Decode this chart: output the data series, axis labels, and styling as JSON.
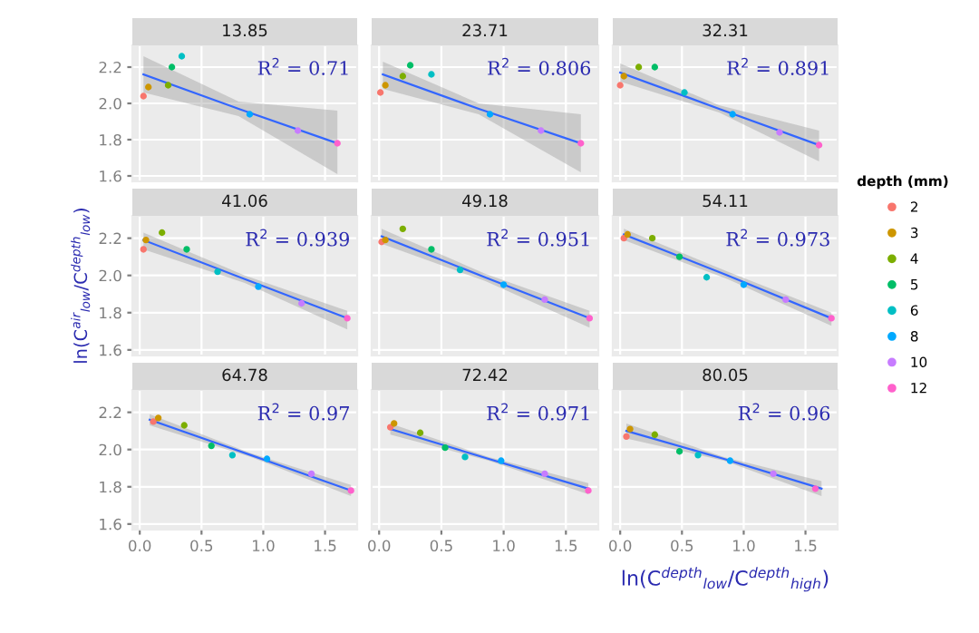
{
  "chart_data": [
    {
      "type": "scatter",
      "title": "13.85",
      "annotations": [
        "R$^{2}$ = 0.71"
      ],
      "xlim": [
        -0.06,
        1.76
      ],
      "ylim": [
        1.57,
        2.32
      ],
      "xticks": [
        {
          "value": 0,
          "label": null
        },
        {
          "value": 0.5,
          "label": null
        },
        {
          "value": 1,
          "label": null
        },
        {
          "value": 1.5,
          "label": null
        }
      ],
      "yticks": [
        {
          "value": 1.6,
          "label": "1.6"
        },
        {
          "value": 1.8,
          "label": "1.8"
        },
        {
          "value": 2.0,
          "label": "2.0"
        },
        {
          "value": 2.2,
          "label": "2.2"
        }
      ],
      "tick_labels": "y",
      "grid": true,
      "marker": "circle",
      "series": [
        {
          "x": [
            0.03,
            0.07,
            0.23,
            0.26,
            0.34,
            0.89,
            1.28,
            1.6
          ],
          "values": [
            2.04,
            2.09,
            2.1,
            2.2,
            2.26,
            1.94,
            1.85,
            1.78
          ],
          "colors": [
            "#F8766D",
            "#CD9600",
            "#7CAE00",
            "#00BE67",
            "#00BFC4",
            "#00A9FF",
            "#C77CFF",
            "#FF61CC"
          ]
        },
        {
          "type": "line",
          "marker": "none",
          "color": "#3366FF",
          "x": [
            0.03,
            0.8,
            1.6
          ],
          "values": [
            2.16,
            1.97,
            1.78
          ],
          "lower": [
            2.06,
            1.93,
            1.61
          ],
          "upper": [
            2.26,
            2.01,
            1.96
          ]
        }
      ]
    },
    {
      "type": "scatter",
      "title": "23.71",
      "annotations": [
        "R$^{2}$ = 0.806"
      ],
      "xlim": [
        -0.06,
        1.76
      ],
      "ylim": [
        1.57,
        2.32
      ],
      "xticks": [
        {
          "value": 0,
          "label": null
        },
        {
          "value": 0.5,
          "label": null
        },
        {
          "value": 1,
          "label": null
        },
        {
          "value": 1.5,
          "label": null
        }
      ],
      "yticks": [
        {
          "value": 1.6,
          "label": null
        },
        {
          "value": 1.8,
          "label": null
        },
        {
          "value": 2.0,
          "label": null
        },
        {
          "value": 2.2,
          "label": null
        }
      ],
      "tick_labels": false,
      "grid": true,
      "marker": "circle",
      "series": [
        {
          "x": [
            0.01,
            0.05,
            0.19,
            0.25,
            0.42,
            0.89,
            1.3,
            1.62
          ],
          "values": [
            2.06,
            2.1,
            2.15,
            2.21,
            2.16,
            1.94,
            1.85,
            1.78
          ],
          "colors": [
            "#F8766D",
            "#CD9600",
            "#7CAE00",
            "#00BE67",
            "#00BFC4",
            "#00A9FF",
            "#C77CFF",
            "#FF61CC"
          ]
        },
        {
          "type": "line",
          "marker": "none",
          "color": "#3366FF",
          "x": [
            0.03,
            0.8,
            1.62
          ],
          "values": [
            2.16,
            1.97,
            1.78
          ],
          "lower": [
            2.08,
            1.94,
            1.62
          ],
          "upper": [
            2.23,
            2.0,
            1.94
          ]
        }
      ]
    },
    {
      "type": "scatter",
      "title": "32.31",
      "annotations": [
        "R$^{2}$ = 0.891"
      ],
      "xlim": [
        -0.06,
        1.76
      ],
      "ylim": [
        1.57,
        2.32
      ],
      "xticks": [
        {
          "value": 0,
          "label": null
        },
        {
          "value": 0.5,
          "label": null
        },
        {
          "value": 1,
          "label": null
        },
        {
          "value": 1.5,
          "label": null
        }
      ],
      "yticks": [
        {
          "value": 1.6,
          "label": null
        },
        {
          "value": 1.8,
          "label": null
        },
        {
          "value": 2.0,
          "label": null
        },
        {
          "value": 2.2,
          "label": null
        }
      ],
      "tick_labels": false,
      "grid": true,
      "marker": "circle",
      "series": [
        {
          "x": [
            0.0,
            0.03,
            0.15,
            0.28,
            0.52,
            0.91,
            1.29,
            1.61
          ],
          "values": [
            2.1,
            2.15,
            2.2,
            2.2,
            2.06,
            1.94,
            1.84,
            1.77
          ],
          "colors": [
            "#F8766D",
            "#CD9600",
            "#7CAE00",
            "#00BE67",
            "#00BFC4",
            "#00A9FF",
            "#C77CFF",
            "#FF61CC"
          ]
        },
        {
          "type": "line",
          "marker": "none",
          "color": "#3366FF",
          "x": [
            0.0,
            0.8,
            1.61
          ],
          "values": [
            2.17,
            1.97,
            1.77
          ],
          "lower": [
            2.12,
            1.95,
            1.68
          ],
          "upper": [
            2.22,
            1.99,
            1.85
          ]
        }
      ]
    },
    {
      "type": "scatter",
      "title": "41.06",
      "ylabel": "ln(C$^{air}$$_{low}$/C$^{depth}$$_{low}$)",
      "annotations": [
        "R$^{2}$ = 0.939"
      ],
      "xlim": [
        -0.06,
        1.76
      ],
      "ylim": [
        1.57,
        2.32
      ],
      "xticks": [
        {
          "value": 0,
          "label": null
        },
        {
          "value": 0.5,
          "label": null
        },
        {
          "value": 1,
          "label": null
        },
        {
          "value": 1.5,
          "label": null
        }
      ],
      "yticks": [
        {
          "value": 1.6,
          "label": "1.6"
        },
        {
          "value": 1.8,
          "label": "1.8"
        },
        {
          "value": 2.0,
          "label": "2.0"
        },
        {
          "value": 2.2,
          "label": "2.2"
        }
      ],
      "tick_labels": "y",
      "grid": true,
      "marker": "circle",
      "series": [
        {
          "x": [
            0.03,
            0.05,
            0.18,
            0.38,
            0.63,
            0.96,
            1.31,
            1.68
          ],
          "values": [
            2.14,
            2.19,
            2.23,
            2.14,
            2.02,
            1.94,
            1.85,
            1.77
          ],
          "colors": [
            "#F8766D",
            "#CD9600",
            "#7CAE00",
            "#00BE67",
            "#00BFC4",
            "#00A9FF",
            "#C77CFF",
            "#FF61CC"
          ]
        },
        {
          "type": "line",
          "marker": "none",
          "color": "#3366FF",
          "x": [
            0.03,
            0.85,
            1.68
          ],
          "values": [
            2.19,
            1.98,
            1.77
          ],
          "lower": [
            2.14,
            1.96,
            1.71
          ],
          "upper": [
            2.23,
            2.0,
            1.81
          ]
        }
      ]
    },
    {
      "type": "scatter",
      "title": "49.18",
      "annotations": [
        "R$^{2}$ = 0.951"
      ],
      "xlim": [
        -0.06,
        1.76
      ],
      "ylim": [
        1.57,
        2.32
      ],
      "xticks": [
        {
          "value": 0,
          "label": null
        },
        {
          "value": 0.5,
          "label": null
        },
        {
          "value": 1,
          "label": null
        },
        {
          "value": 1.5,
          "label": null
        }
      ],
      "yticks": [
        {
          "value": 1.6,
          "label": null
        },
        {
          "value": 1.8,
          "label": null
        },
        {
          "value": 2.0,
          "label": null
        },
        {
          "value": 2.2,
          "label": null
        }
      ],
      "tick_labels": false,
      "grid": true,
      "marker": "circle",
      "series": [
        {
          "x": [
            0.02,
            0.05,
            0.19,
            0.42,
            0.65,
            1.0,
            1.33,
            1.69
          ],
          "values": [
            2.18,
            2.19,
            2.25,
            2.14,
            2.03,
            1.95,
            1.87,
            1.77
          ],
          "colors": [
            "#F8766D",
            "#CD9600",
            "#7CAE00",
            "#00BE67",
            "#00BFC4",
            "#00A9FF",
            "#C77CFF",
            "#FF61CC"
          ]
        },
        {
          "type": "line",
          "marker": "none",
          "color": "#3366FF",
          "x": [
            0.02,
            0.85,
            1.69
          ],
          "values": [
            2.21,
            1.99,
            1.77
          ],
          "lower": [
            2.17,
            1.97,
            1.72
          ],
          "upper": [
            2.25,
            2.01,
            1.81
          ]
        }
      ]
    },
    {
      "type": "scatter",
      "title": "54.11",
      "legend_title": "depth (mm)",
      "legend": "right",
      "annotations": [
        "R$^{2}$ = 0.973"
      ],
      "xlim": [
        -0.06,
        1.76
      ],
      "ylim": [
        1.57,
        2.32
      ],
      "xticks": [
        {
          "value": 0,
          "label": null
        },
        {
          "value": 0.5,
          "label": null
        },
        {
          "value": 1,
          "label": null
        },
        {
          "value": 1.5,
          "label": null
        }
      ],
      "yticks": [
        {
          "value": 1.6,
          "label": null
        },
        {
          "value": 1.8,
          "label": null
        },
        {
          "value": 2.0,
          "label": null
        },
        {
          "value": 2.2,
          "label": null
        }
      ],
      "tick_labels": false,
      "grid": true,
      "marker": "circle",
      "series": [
        {
          "name": "2",
          "color": "#F8766D",
          "x": [
            0.03
          ],
          "values": [
            2.2
          ]
        },
        {
          "name": "3",
          "color": "#CD9600",
          "x": [
            0.06
          ],
          "values": [
            2.22
          ]
        },
        {
          "name": "4",
          "color": "#7CAE00",
          "x": [
            0.26
          ],
          "values": [
            2.2
          ]
        },
        {
          "name": "5",
          "color": "#00BE67",
          "x": [
            0.48
          ],
          "values": [
            2.1
          ]
        },
        {
          "name": "6",
          "color": "#00BFC4",
          "x": [
            0.7
          ],
          "values": [
            1.99
          ]
        },
        {
          "name": "8",
          "color": "#00A9FF",
          "x": [
            1.0
          ],
          "values": [
            1.95
          ]
        },
        {
          "name": "10",
          "color": "#C77CFF",
          "x": [
            1.34
          ],
          "values": [
            1.87
          ]
        },
        {
          "name": "12",
          "color": "#FF61CC",
          "x": [
            1.71
          ],
          "values": [
            1.77
          ]
        },
        {
          "type": "line",
          "marker": "none",
          "color": "#3366FF",
          "x": [
            0.03,
            0.87,
            1.71
          ],
          "values": [
            2.22,
            2.0,
            1.77
          ],
          "lower": [
            2.19,
            1.98,
            1.73
          ],
          "upper": [
            2.25,
            2.02,
            1.8
          ]
        }
      ]
    },
    {
      "type": "scatter",
      "title": "64.78",
      "annotations": [
        "R$^{2}$ = 0.97"
      ],
      "xlim": [
        -0.06,
        1.76
      ],
      "ylim": [
        1.57,
        2.32
      ],
      "xticks": [
        {
          "value": 0,
          "label": "0.0"
        },
        {
          "value": 0.5,
          "label": "0.5"
        },
        {
          "value": 1,
          "label": "1.0"
        },
        {
          "value": 1.5,
          "label": "1.5"
        }
      ],
      "yticks": [
        {
          "value": 1.6,
          "label": "1.6"
        },
        {
          "value": 1.8,
          "label": "1.8"
        },
        {
          "value": 2.0,
          "label": "2.0"
        },
        {
          "value": 2.2,
          "label": "2.2"
        }
      ],
      "grid": true,
      "marker": "circle",
      "series": [
        {
          "x": [
            0.11,
            0.15,
            0.36,
            0.58,
            0.75,
            1.03,
            1.39,
            1.71
          ],
          "values": [
            2.15,
            2.17,
            2.13,
            2.02,
            1.97,
            1.95,
            1.87,
            1.78
          ],
          "colors": [
            "#F8766D",
            "#CD9600",
            "#7CAE00",
            "#00BE67",
            "#00BFC4",
            "#00A9FF",
            "#C77CFF",
            "#FF61CC"
          ]
        },
        {
          "type": "line",
          "marker": "none",
          "color": "#3366FF",
          "x": [
            0.08,
            0.9,
            1.71
          ],
          "values": [
            2.16,
            1.97,
            1.78
          ],
          "lower": [
            2.13,
            1.96,
            1.75
          ],
          "upper": [
            2.19,
            1.98,
            1.81
          ]
        }
      ]
    },
    {
      "type": "scatter",
      "title": "72.42",
      "annotations": [
        "R$^{2}$ = 0.971"
      ],
      "xlim": [
        -0.06,
        1.76
      ],
      "ylim": [
        1.57,
        2.32
      ],
      "xticks": [
        {
          "value": 0,
          "label": "0.0"
        },
        {
          "value": 0.5,
          "label": "0.5"
        },
        {
          "value": 1,
          "label": "1.0"
        },
        {
          "value": 1.5,
          "label": "1.5"
        }
      ],
      "yticks": [
        {
          "value": 1.6,
          "label": null
        },
        {
          "value": 1.8,
          "label": null
        },
        {
          "value": 2.0,
          "label": null
        },
        {
          "value": 2.2,
          "label": null
        }
      ],
      "tick_labels": "x",
      "grid": true,
      "marker": "circle",
      "series": [
        {
          "x": [
            0.09,
            0.12,
            0.33,
            0.53,
            0.69,
            0.98,
            1.33,
            1.68
          ],
          "values": [
            2.12,
            2.14,
            2.09,
            2.01,
            1.96,
            1.94,
            1.87,
            1.78
          ],
          "colors": [
            "#F8766D",
            "#CD9600",
            "#7CAE00",
            "#00BE67",
            "#00BFC4",
            "#00A9FF",
            "#C77CFF",
            "#FF61CC"
          ]
        },
        {
          "type": "line",
          "marker": "none",
          "color": "#3366FF",
          "x": [
            0.09,
            0.88,
            1.68
          ],
          "values": [
            2.11,
            1.95,
            1.79
          ],
          "lower": [
            2.08,
            1.94,
            1.76
          ],
          "upper": [
            2.14,
            1.96,
            1.82
          ]
        }
      ]
    },
    {
      "type": "scatter",
      "title": "80.05",
      "xlabel": "ln(C$^{depth}$$_{low}$/C$^{depth}$$_{high}$)",
      "annotations": [
        "R$^{2}$ = 0.96"
      ],
      "xlim": [
        -0.06,
        1.76
      ],
      "ylim": [
        1.57,
        2.32
      ],
      "xticks": [
        {
          "value": 0,
          "label": "0.0"
        },
        {
          "value": 0.5,
          "label": "0.5"
        },
        {
          "value": 1,
          "label": "1.0"
        },
        {
          "value": 1.5,
          "label": "1.5"
        }
      ],
      "yticks": [
        {
          "value": 1.6,
          "label": null
        },
        {
          "value": 1.8,
          "label": null
        },
        {
          "value": 2.0,
          "label": null
        },
        {
          "value": 2.2,
          "label": null
        }
      ],
      "tick_labels": "x",
      "grid": true,
      "marker": "circle",
      "series": [
        {
          "x": [
            0.05,
            0.08,
            0.28,
            0.48,
            0.63,
            0.89,
            1.24,
            1.58
          ],
          "values": [
            2.07,
            2.11,
            2.08,
            1.99,
            1.97,
            1.94,
            1.87,
            1.79
          ],
          "colors": [
            "#F8766D",
            "#CD9600",
            "#7CAE00",
            "#00BE67",
            "#00BFC4",
            "#00A9FF",
            "#C77CFF",
            "#FF61CC"
          ]
        },
        {
          "type": "line",
          "marker": "none",
          "color": "#3366FF",
          "x": [
            0.05,
            0.84,
            1.63
          ],
          "values": [
            2.1,
            1.95,
            1.79
          ],
          "lower": [
            2.06,
            1.94,
            1.75
          ],
          "upper": [
            2.14,
            1.96,
            1.83
          ]
        }
      ]
    }
  ]
}
